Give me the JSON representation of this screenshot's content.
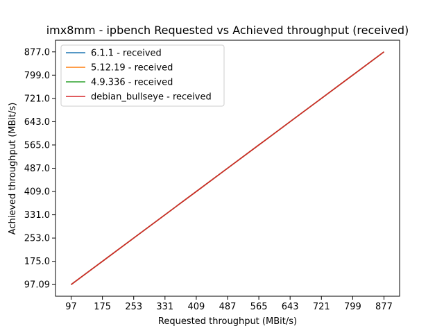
{
  "chart_data": {
    "type": "line",
    "title": "imx8mm - ipbench Requested vs Achieved throughput (received)",
    "xlabel": "Requested throughput (MBit/s)",
    "ylabel": "Achieved throughput (MBit/s)",
    "xlim": [
      58,
      916
    ],
    "ylim": [
      58,
      916
    ],
    "x_ticks": [
      97,
      175,
      253,
      331,
      409,
      487,
      565,
      643,
      721,
      799,
      877
    ],
    "x_tick_labels": [
      "97",
      "175",
      "253",
      "331",
      "409",
      "487",
      "565",
      "643",
      "721",
      "799",
      "877"
    ],
    "y_ticks": [
      97.09,
      175,
      253,
      331,
      409,
      487,
      565,
      643,
      721,
      799,
      877
    ],
    "y_tick_labels": [
      "97.09",
      "175.0",
      "253.0",
      "331.0",
      "409.0",
      "487.0",
      "565.0",
      "643.0",
      "721.0",
      "799.0",
      "877.0"
    ],
    "legend_position": "top-left",
    "series": [
      {
        "name": "6.1.1 - received",
        "color": "#1f77b4",
        "x": [
          97,
          175,
          253,
          331,
          409,
          487,
          565,
          643,
          721,
          799,
          877
        ],
        "y": [
          97.09,
          175,
          253,
          331,
          409,
          487,
          565,
          643,
          721,
          799,
          877
        ]
      },
      {
        "name": "5.12.19 - received",
        "color": "#ff7f0e",
        "x": [
          97,
          175,
          253,
          331,
          409,
          487,
          565,
          643,
          721,
          799,
          877
        ],
        "y": [
          97.09,
          175,
          253,
          331,
          409,
          487,
          565,
          643,
          721,
          799,
          877
        ]
      },
      {
        "name": "4.9.336 - received",
        "color": "#2ca02c",
        "x": [
          97,
          175,
          253,
          331,
          409,
          487,
          565,
          643,
          721,
          799,
          877
        ],
        "y": [
          97.09,
          175,
          253,
          331,
          409,
          487,
          565,
          643,
          721,
          799,
          877
        ]
      },
      {
        "name": "debian_bullseye - received",
        "color": "#d62728",
        "x": [
          97,
          175,
          253,
          331,
          409,
          487,
          565,
          643,
          721,
          799,
          877
        ],
        "y": [
          97.09,
          175,
          253,
          331,
          409,
          487,
          565,
          643,
          721,
          799,
          877
        ]
      }
    ]
  }
}
